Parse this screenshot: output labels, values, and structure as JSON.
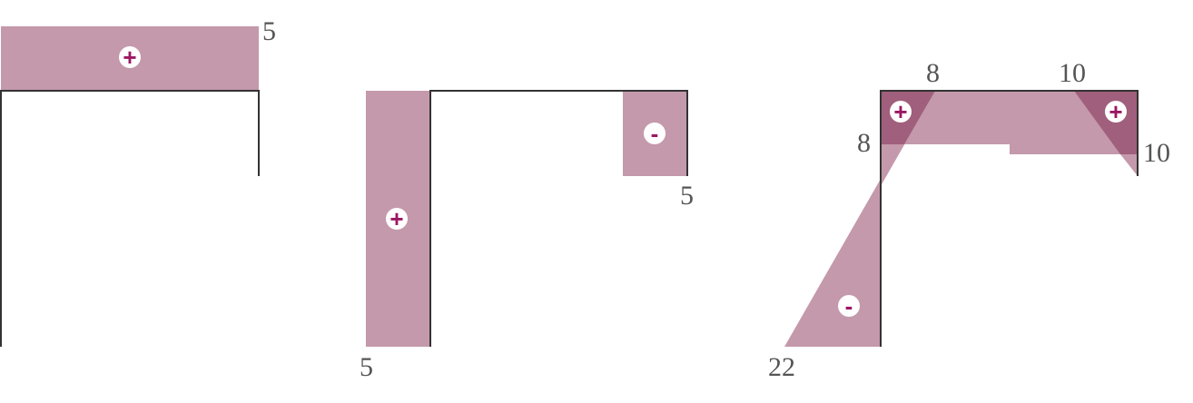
{
  "colors": {
    "region": "#c499ab",
    "overlap": "#a05f7c",
    "frame": "#333333",
    "sign": "#9c1764",
    "label": "#555555",
    "badge_bg": "#ffffff"
  },
  "diagram_1": {
    "labels": {
      "right_top": "5"
    },
    "signs": {
      "beam_sign": "+"
    }
  },
  "diagram_2": {
    "labels": {
      "column_bottom": "5",
      "right_post_bottom": "5"
    },
    "signs": {
      "column_sign": "+",
      "post_sign": "-"
    }
  },
  "diagram_3": {
    "labels": {
      "left_corner_top": "8",
      "left_corner_side": "8",
      "right_corner_top": "10",
      "right_corner_side": "10",
      "column_bottom": "22"
    },
    "signs": {
      "left_corner_sign": "+",
      "right_corner_sign": "+",
      "column_sign": "-"
    }
  }
}
